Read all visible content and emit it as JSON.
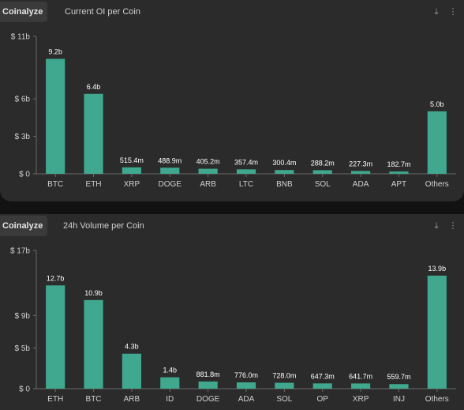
{
  "colors": {
    "bar": "#3fa88e",
    "axis": "#6a6a6a",
    "panel": "#2b2b2b"
  },
  "header_icons": [
    "download-icon",
    "menu-icon"
  ],
  "chart_data": [
    {
      "type": "bar",
      "brand": "Coinalyze",
      "title": "Current OI per Coin",
      "categories": [
        "BTC",
        "ETH",
        "XRP",
        "DOGE",
        "ARB",
        "LTC",
        "BNB",
        "SOL",
        "ADA",
        "APT",
        "Others"
      ],
      "values": [
        9.2,
        6.4,
        0.5154,
        0.4889,
        0.4052,
        0.3574,
        0.3004,
        0.2882,
        0.2273,
        0.1827,
        5.0
      ],
      "data_labels": [
        "9.2b",
        "6.4b",
        "515.4m",
        "488.9m",
        "405.2m",
        "357.4m",
        "300.4m",
        "288.2m",
        "227.3m",
        "182.7m",
        "5.0b"
      ],
      "y_ticks": [
        0,
        3,
        6,
        11
      ],
      "y_tick_labels": [
        "$ 0",
        "$ 3b",
        "$ 6b",
        "$ 11b"
      ],
      "ylim": [
        0,
        11
      ],
      "xlabel": "",
      "ylabel": "",
      "grid": false,
      "legend": "none"
    },
    {
      "type": "bar",
      "brand": "Coinalyze",
      "title": "24h Volume per Coin",
      "categories": [
        "ETH",
        "BTC",
        "ARB",
        "ID",
        "DOGE",
        "ADA",
        "SOL",
        "OP",
        "XRP",
        "INJ",
        "Others"
      ],
      "values": [
        12.7,
        10.9,
        4.3,
        1.4,
        0.8818,
        0.776,
        0.728,
        0.6473,
        0.6417,
        0.5597,
        13.9
      ],
      "data_labels": [
        "12.7b",
        "10.9b",
        "4.3b",
        "1.4b",
        "881.8m",
        "776.0m",
        "728.0m",
        "647.3m",
        "641.7m",
        "559.7m",
        "13.9b"
      ],
      "y_ticks": [
        0,
        5,
        9,
        17
      ],
      "y_tick_labels": [
        "$ 0",
        "$ 5b",
        "$ 9b",
        "$ 17b"
      ],
      "ylim": [
        0,
        17
      ],
      "xlabel": "",
      "ylabel": "",
      "grid": false,
      "legend": "none"
    }
  ]
}
